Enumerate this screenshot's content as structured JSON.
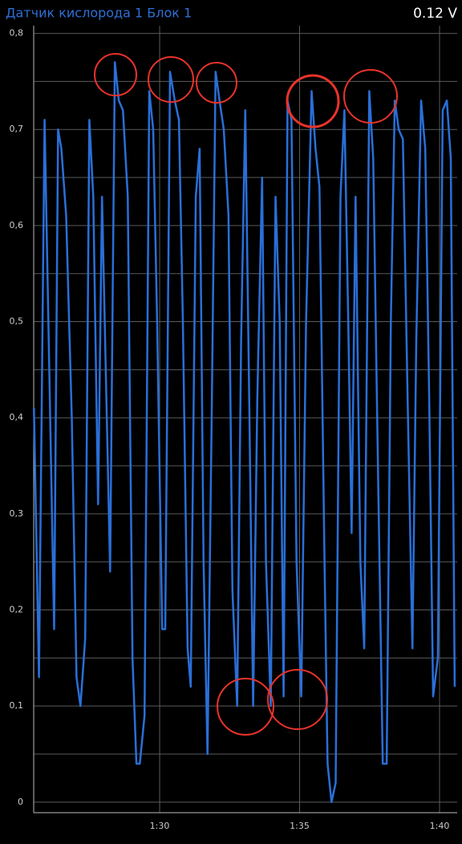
{
  "chart_data": {
    "type": "line",
    "title": "Датчик кислорода 1 Блок 1",
    "current_value": "0.12 V",
    "x": [
      85.51,
      85.69,
      85.89,
      86.23,
      86.37,
      86.49,
      86.66,
      86.86,
      87.03,
      87.17,
      87.34,
      87.49,
      87.63,
      87.8,
      87.94,
      88.23,
      88.4,
      88.54,
      88.69,
      88.86,
      89.03,
      89.17,
      89.29,
      89.46,
      89.63,
      89.77,
      89.91,
      90.09,
      90.2,
      90.37,
      90.54,
      90.69,
      90.83,
      91.0,
      91.11,
      91.29,
      91.43,
      91.57,
      91.71,
      91.86,
      92.0,
      92.14,
      92.29,
      92.46,
      92.6,
      92.77,
      92.91,
      93.06,
      93.2,
      93.34,
      93.49,
      93.66,
      93.8,
      93.97,
      94.14,
      94.29,
      94.43,
      94.57,
      94.71,
      94.89,
      95.06,
      95.23,
      95.43,
      95.57,
      95.71,
      95.89,
      96.0,
      96.14,
      96.29,
      96.46,
      96.6,
      96.74,
      96.86,
      97.0,
      97.17,
      97.31,
      97.49,
      97.63,
      97.8,
      97.97,
      98.11,
      98.26,
      98.4,
      98.54,
      98.69,
      98.86,
      99.03,
      99.17,
      99.34,
      99.49,
      99.63,
      99.77,
      99.94,
      100.11,
      100.26,
      100.4,
      100.54
    ],
    "series": [
      {
        "color": "#2a6fd8",
        "values": [
          0.41,
          0.13,
          0.71,
          0.18,
          0.7,
          0.68,
          0.61,
          0.4,
          0.13,
          0.1,
          0.17,
          0.71,
          0.63,
          0.31,
          0.63,
          0.24,
          0.77,
          0.73,
          0.72,
          0.63,
          0.15,
          0.04,
          0.04,
          0.09,
          0.74,
          0.7,
          0.5,
          0.18,
          0.18,
          0.76,
          0.73,
          0.71,
          0.5,
          0.16,
          0.12,
          0.63,
          0.68,
          0.25,
          0.05,
          0.4,
          0.76,
          0.73,
          0.7,
          0.61,
          0.22,
          0.1,
          0.48,
          0.72,
          0.42,
          0.1,
          0.42,
          0.65,
          0.25,
          0.1,
          0.63,
          0.5,
          0.11,
          0.73,
          0.71,
          0.25,
          0.11,
          0.5,
          0.74,
          0.68,
          0.64,
          0.25,
          0.04,
          0,
          0.02,
          0.63,
          0.72,
          0.5,
          0.28,
          0.63,
          0.25,
          0.16,
          0.74,
          0.67,
          0.35,
          0.04,
          0.04,
          0.5,
          0.73,
          0.7,
          0.69,
          0.42,
          0.16,
          0.48,
          0.73,
          0.68,
          0.42,
          0.11,
          0.15,
          0.72,
          0.73,
          0.67,
          0.12
        ]
      }
    ],
    "xlim": [
      85.5,
      100.63
    ],
    "xticks": [
      {
        "value": 90,
        "label": "1:30"
      },
      {
        "value": 95,
        "label": "1:35"
      },
      {
        "value": 100,
        "label": "1:40"
      }
    ],
    "ylim": [
      -0.011,
      0.808
    ],
    "yticks": [
      0,
      {
        "value": 0.1,
        "label": "0,1"
      },
      {
        "value": 0.2,
        "label": "0,2"
      },
      {
        "value": 0.3,
        "label": "0,3"
      },
      {
        "value": 0.4,
        "label": "0,4"
      },
      {
        "value": 0.5,
        "label": "0,5"
      },
      {
        "value": 0.6,
        "label": "0,6"
      },
      {
        "value": 0.7,
        "label": "0,7"
      },
      {
        "value": 0.8,
        "label": "0,8"
      }
    ],
    "y_minor_ticks": [
      0.05,
      0.15,
      0.25,
      0.35,
      0.45,
      0.55,
      0.65,
      0.75
    ],
    "grid": true
  }
}
